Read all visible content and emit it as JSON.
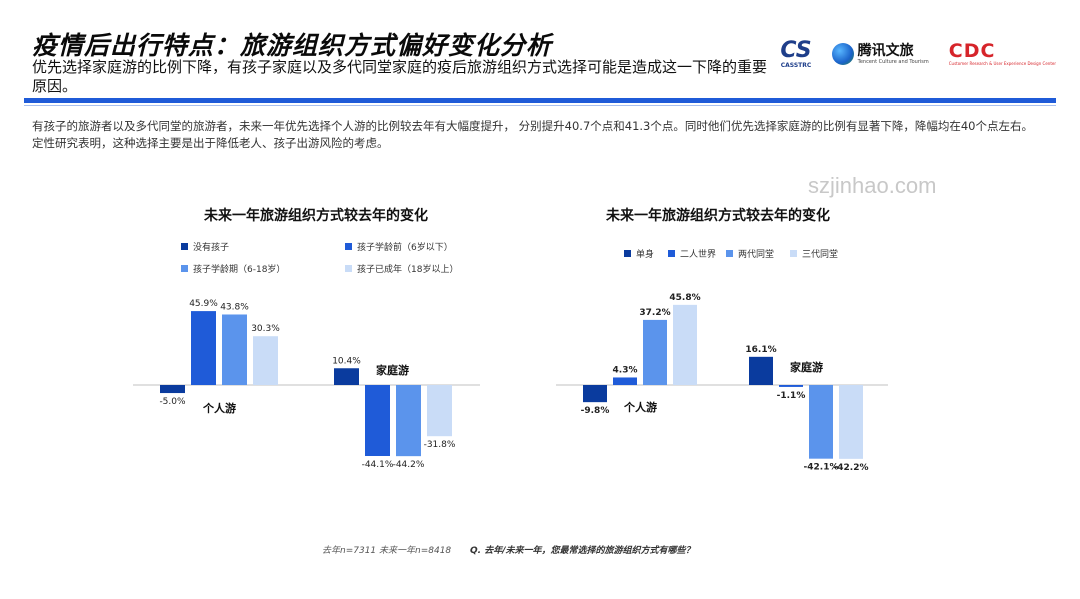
{
  "header": {
    "title": "疫情后出行特点：旅游组织方式偏好变化分析",
    "subtitle": "优先选择家庭游的比例下降，有孩子家庭以及多代同堂家庭的疫后旅游组织方式选择可能是造成这一下降的重要原因。"
  },
  "logos": {
    "casstrc": {
      "mark": "CS",
      "text": "CASSTRC"
    },
    "tencent": {
      "cn": "腾讯文旅",
      "en": "Tencent Culture and Tourism"
    },
    "cdc": {
      "mark": "CDC",
      "sub": "Customer Research & User Experience Design Center"
    }
  },
  "description": "有孩子的旅游者以及多代同堂的旅游者，未来一年优先选择个人游的比例较去年有大幅度提升， 分别提升40.7个点和41.3个点。同时他们优先选择家庭游的比例有显著下降，降幅均在40个点左右。定性研究表明，这种选择主要是出于降低老人、孩子出游风险的考虑。",
  "watermark": "szjinhao.com",
  "footer": {
    "sample": "去年n=7311 未来一年n=8418",
    "question": "Q. 去年/未来一年，您最常选择的旅游组织方式有哪些？"
  },
  "colors": {
    "dark": "#0a3b9e",
    "mid": "#1f5bd8",
    "light": "#5b94ec",
    "pale": "#c9dcf7",
    "axis": "#c0c0c0"
  },
  "chart_data": [
    {
      "type": "bar",
      "title": "未来一年旅游组织方式较去年的变化",
      "categories": [
        "个人游",
        "家庭游"
      ],
      "series": [
        {
          "name": "没有孩子",
          "values": [
            -5.0,
            10.4
          ],
          "color": "#0a3b9e"
        },
        {
          "name": "孩子学龄前（6岁以下）",
          "values": [
            45.9,
            -44.1
          ],
          "color": "#1f5bd8"
        },
        {
          "name": "孩子学龄期（6-18岁）",
          "values": [
            43.8,
            -44.2
          ],
          "color": "#5b94ec"
        },
        {
          "name": "孩子已成年（18岁以上）",
          "values": [
            30.3,
            -31.8
          ],
          "color": "#c9dcf7"
        }
      ],
      "value_labels": [
        [
          "-5.0%",
          "10.4%"
        ],
        [
          "45.9%",
          "-44.1%"
        ],
        [
          "43.8%",
          "-44.2%"
        ],
        [
          "30.3%",
          "-31.8%"
        ]
      ],
      "ylim": [
        -55,
        55
      ],
      "legend_position": "top"
    },
    {
      "type": "bar",
      "title": "未来一年旅游组织方式较去年的变化",
      "categories": [
        "个人游",
        "家庭游"
      ],
      "series": [
        {
          "name": "单身",
          "values": [
            -9.8,
            16.1
          ],
          "color": "#0a3b9e"
        },
        {
          "name": "二人世界",
          "values": [
            4.3,
            -1.1
          ],
          "color": "#1f5bd8"
        },
        {
          "name": "两代同堂",
          "values": [
            37.2,
            -42.1
          ],
          "color": "#5b94ec"
        },
        {
          "name": "三代同堂",
          "values": [
            45.8,
            -42.2
          ],
          "color": "#c9dcf7"
        }
      ],
      "value_labels": [
        [
          "-9.8%",
          "16.1%"
        ],
        [
          "4.3%",
          "-1.1%"
        ],
        [
          "37.2%",
          "-42.1%"
        ],
        [
          "45.8%",
          "-42.2%"
        ]
      ],
      "ylim": [
        -55,
        55
      ],
      "legend_position": "top"
    }
  ]
}
